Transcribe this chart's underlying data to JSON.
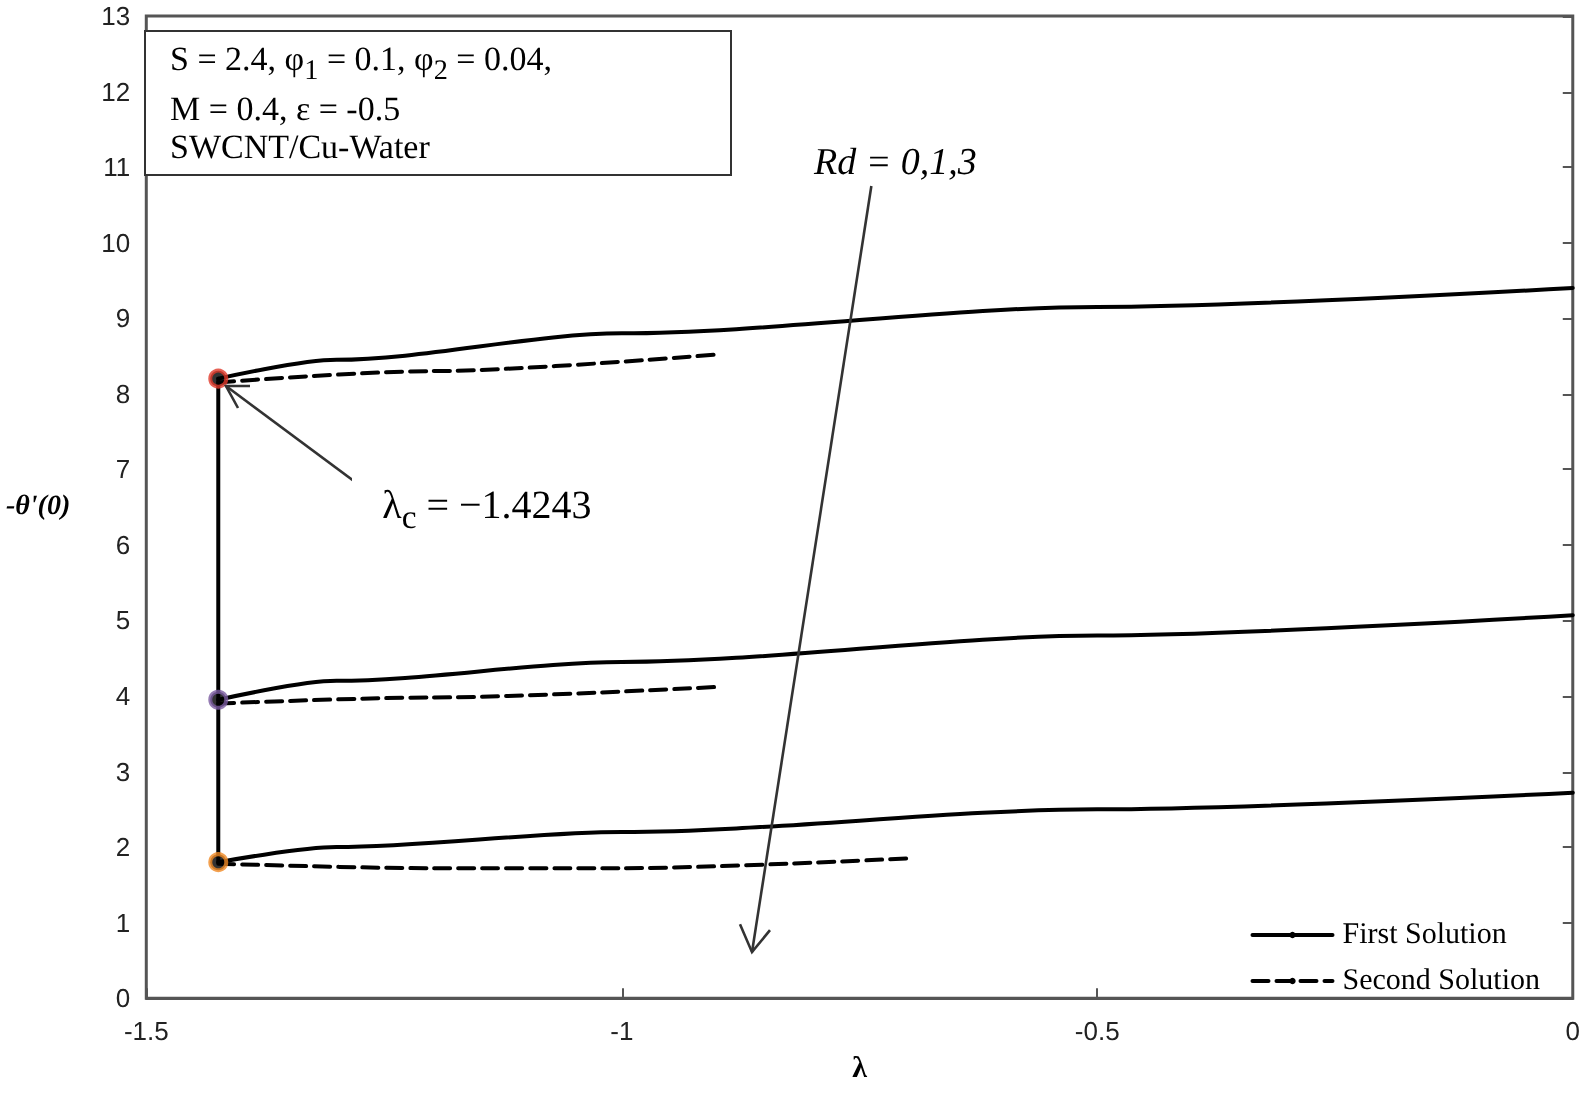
{
  "chart_data": {
    "type": "line",
    "xlabel": "λ",
    "ylabel": "-θ'(0)",
    "xlim": [
      -1.5,
      0
    ],
    "xticks": [
      -1.5,
      -1,
      -0.5,
      0
    ],
    "ylim": [
      0,
      13
    ],
    "yticks": [
      0,
      1,
      2,
      3,
      4,
      5,
      6,
      7,
      8,
      9,
      10,
      11,
      12,
      13
    ],
    "grid": false,
    "legend": "bottom right",
    "series": [
      {
        "name": "First Solution",
        "color": "#000000",
        "line_style": "solid",
        "x": [
          -1.4243,
          -1.3,
          -1.0,
          -0.5,
          0
        ],
        "values": [
          8.2,
          8.45,
          8.8,
          9.15,
          9.4
        ]
      },
      {
        "color": "#000000",
        "line_style": "solid",
        "x": [
          -1.4243,
          -1.3,
          -1.0,
          -0.5,
          0
        ],
        "values": [
          3.95,
          4.2,
          4.45,
          4.8,
          5.07
        ]
      },
      {
        "color": "#000000",
        "line_style": "solid",
        "x": [
          -1.4243,
          -1.3,
          -1.0,
          -0.5,
          0
        ],
        "values": [
          1.8,
          2.0,
          2.2,
          2.5,
          2.72
        ]
      },
      {
        "name": "Second Solution",
        "color": "#000000",
        "line_style": "dashed",
        "x": [
          -1.4243,
          -1.2,
          -0.9
        ],
        "values": [
          8.15,
          8.3,
          8.52
        ]
      },
      {
        "color": "#000000",
        "line_style": "dashed",
        "x": [
          -1.4243,
          -1.2,
          -0.9
        ],
        "values": [
          3.9,
          3.98,
          4.12
        ]
      },
      {
        "color": "#000000",
        "line_style": "dashed",
        "x": [
          -1.4243,
          -1.2,
          -1.0,
          -0.7
        ],
        "values": [
          1.78,
          1.72,
          1.72,
          1.85
        ]
      },
      {
        "color": "#000000",
        "line_style": "solid",
        "x": [
          -1.4243,
          -1.4243
        ],
        "values": [
          1.8,
          8.2
        ]
      },
      {
        "type": "scatter",
        "marker": "circle",
        "x": [
          -1.4243,
          -1.4243,
          -1.4243
        ],
        "values": [
          8.2,
          3.95,
          1.8
        ],
        "colors": [
          "#e03a2a",
          "#7a5ba0",
          "#f08a24"
        ]
      }
    ],
    "annotations": [
      "S = 2.4, φ$_{1}$ = 0.1, φ$_{2}$ = 0.04,",
      "M = 0.4, ε = -0.5",
      "SWCNT/Cu-Water",
      "Rd = 0,1,3",
      {
        "text": "λ$_{c}$ = −1.4243",
        "x": -1.4243,
        "y": 8.2
      }
    ]
  }
}
